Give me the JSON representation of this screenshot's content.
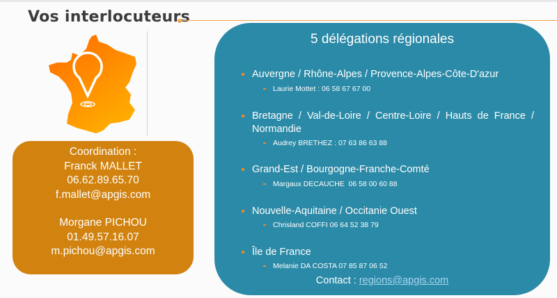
{
  "header": {
    "title": "Vos interlocuteurs"
  },
  "colors": {
    "accent_orange": "#d1820f",
    "teal": "#2b8aa7",
    "bullet": "#f08a24"
  },
  "coordination": {
    "label": "Coordination :",
    "contacts": [
      {
        "name": "Franck MALLET",
        "phone": "06.62.89.65.70",
        "email": "f.mallet@apgis.com"
      },
      {
        "name": "Morgane PICHOU",
        "phone": "01.49.57.16.07",
        "email": "m.pichou@apgis.com"
      }
    ]
  },
  "regions": {
    "title": "5 délégations régionales",
    "items": [
      {
        "region": "Auvergne / Rhône-Alpes / Provence-Alpes-Côte-D'azur",
        "contact": "Laurie Mottet : 06 58 67 67 00"
      },
      {
        "region": "Bretagne / Val-de-Loire / Centre-Loire / Hauts de France / Normandie",
        "contact": "Audrey BRETHEZ : 07 63 86 63 88"
      },
      {
        "region": "Grand-Est / Bourgogne-Franche-Comté",
        "contact": "Margaux DECAUCHE  06 58 00 60 88"
      },
      {
        "region": "Nouvelle-Aquitaine / Occitanie Ouest",
        "contact": "Chrisland COFFI 06 64 52 38 79"
      },
      {
        "region": "Île de France",
        "contact": "Melanie DA COSTA 07 85 87 06 52"
      }
    ],
    "contact_label": "Contact : ",
    "contact_email": "regions@apgis.com"
  }
}
